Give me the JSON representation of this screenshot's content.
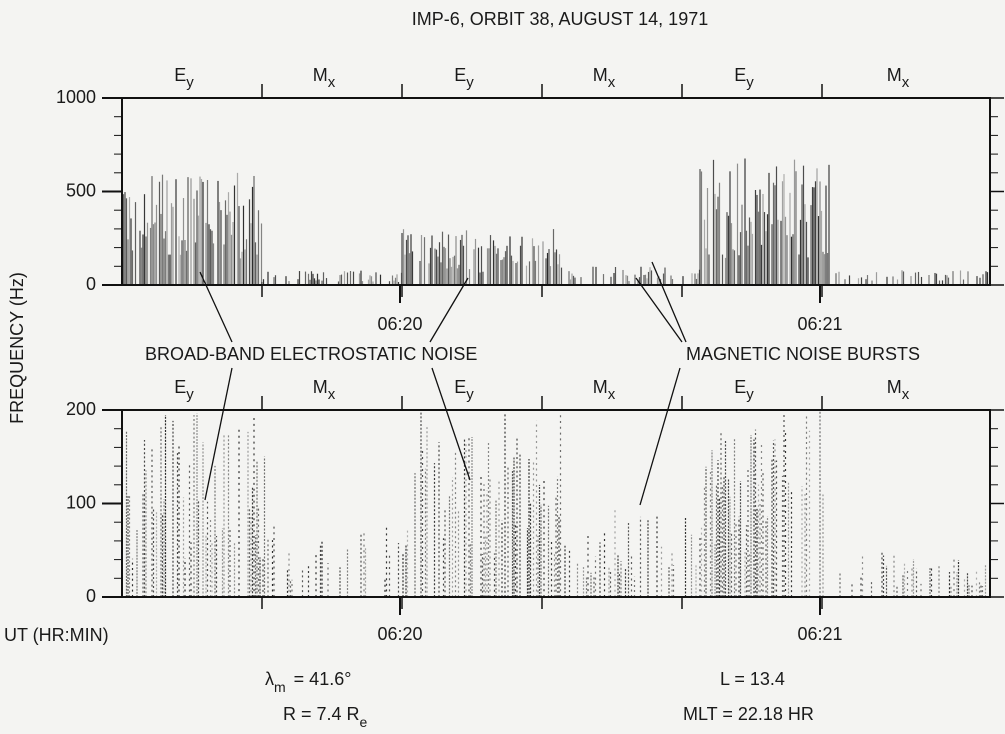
{
  "title": "IMP-6, ORBIT 38, AUGUST 14, 1971",
  "y_label": "FREQUENCY (Hz)",
  "x_label": "UT (HR:MIN)",
  "annotations": [
    "BROAD-BAND ELECTROSTATIC NOISE",
    "MAGNETIC NOISE BURSTS"
  ],
  "parameters": [
    {
      "text": "λ",
      "sub": "m",
      "rest": "= 41.6°"
    },
    {
      "text": "R = 7.4 R",
      "sub": "e"
    },
    {
      "text": "L = 13.4"
    },
    {
      "text": "MLT = 22.18 HR"
    }
  ],
  "chart_data": [
    {
      "type": "spectrogram",
      "ylim": [
        0,
        1000
      ],
      "yticks": [
        0,
        500,
        1000
      ],
      "segments": [
        {
          "name": "E",
          "sub": "y"
        },
        {
          "name": "M",
          "sub": "x"
        },
        {
          "name": "E",
          "sub": "y"
        },
        {
          "name": "M",
          "sub": "x"
        },
        {
          "name": "E",
          "sub": "y"
        },
        {
          "name": "M",
          "sub": "x"
        }
      ],
      "xticks": [
        "06:20",
        "06:21"
      ]
    },
    {
      "type": "spectrogram",
      "ylim": [
        0,
        200
      ],
      "yticks": [
        0,
        100,
        200
      ],
      "segments": [
        {
          "name": "E",
          "sub": "y"
        },
        {
          "name": "M",
          "sub": "x"
        },
        {
          "name": "E",
          "sub": "y"
        },
        {
          "name": "M",
          "sub": "x"
        },
        {
          "name": "E",
          "sub": "y"
        },
        {
          "name": "M",
          "sub": "x"
        }
      ],
      "xticks": [
        "06:20",
        "06:21"
      ]
    }
  ]
}
